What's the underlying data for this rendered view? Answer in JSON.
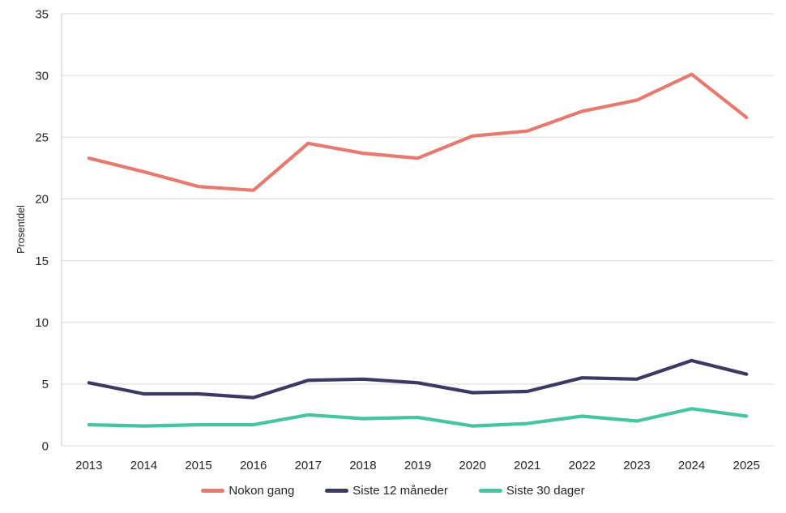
{
  "chart_data": {
    "type": "line",
    "title": "",
    "xlabel": "",
    "ylabel": "Prosentdel",
    "ylim": [
      0,
      35
    ],
    "ytick_step": 5,
    "grid": "horizontal",
    "legend_position": "bottom",
    "x": [
      "2013",
      "2014",
      "2015",
      "2016",
      "2017",
      "2018",
      "2019",
      "2020",
      "2021",
      "2022",
      "2023",
      "2024",
      "2025"
    ],
    "series": [
      {
        "name": "Nokon gang",
        "color": "#E8796F",
        "values": [
          23.3,
          22.2,
          21.0,
          20.7,
          24.5,
          23.7,
          23.3,
          25.1,
          25.5,
          27.1,
          28.0,
          30.1,
          26.6
        ]
      },
      {
        "name": "Siste 12 måneder",
        "color": "#3C3A63",
        "values": [
          5.1,
          4.2,
          4.2,
          3.9,
          5.3,
          5.4,
          5.1,
          4.3,
          4.4,
          5.5,
          5.4,
          6.9,
          5.8
        ]
      },
      {
        "name": "Siste 30 dager",
        "color": "#45C6A1",
        "values": [
          1.7,
          1.6,
          1.7,
          1.7,
          2.5,
          2.2,
          2.3,
          1.6,
          1.8,
          2.4,
          2.0,
          3.0,
          2.4
        ]
      }
    ]
  },
  "style_colors": {
    "gridline": "#E2E2E2",
    "axis_line": "#D5D5D5",
    "tick_text": "#262626"
  }
}
